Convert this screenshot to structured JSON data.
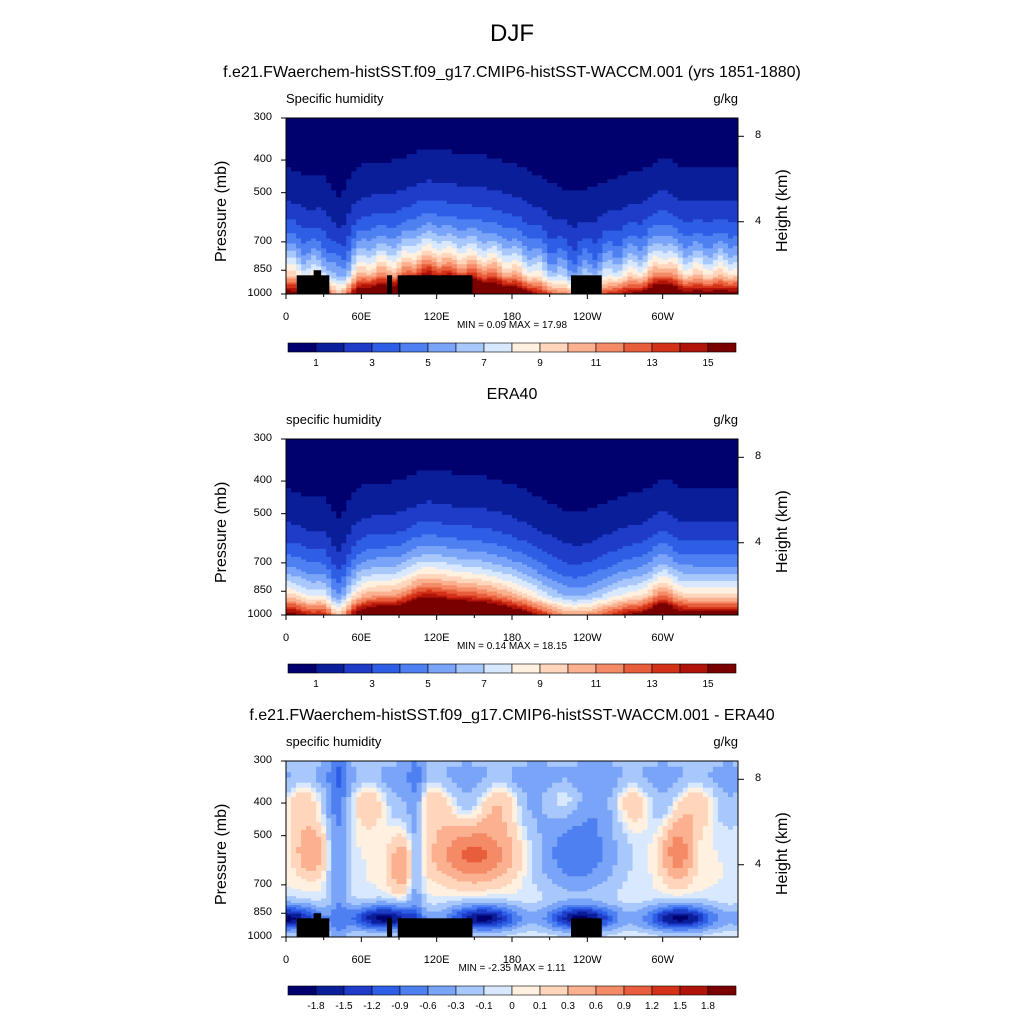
{
  "page_title": "DJF",
  "chart_data": [
    {
      "type": "heatmap",
      "name": "model",
      "title": "f.e21.FWaerchem-histSST.f09_g17.CMIP6-histSST-WACCM.001 (yrs 1851-1880)",
      "left_label": "Specific humidity",
      "units": "g/kg",
      "ylabel": "Pressure (mb)",
      "ylabel_right": "Height (km)",
      "yticks": [
        "300",
        "400",
        "500",
        "700",
        "850",
        "1000"
      ],
      "yticks_right": [
        "8",
        "4"
      ],
      "xticks": [
        "0",
        "60E",
        "120E",
        "180",
        "120W",
        "60W"
      ],
      "minmax": "MIN =   0.09  MAX =   17.98",
      "colorbar_labels": [
        "1",
        "3",
        "5",
        "7",
        "9",
        "11",
        "13",
        "15"
      ],
      "min": 0.09,
      "max": 17.98
    },
    {
      "type": "heatmap",
      "name": "obs",
      "title": "ERA40",
      "left_label": "specific humidity",
      "units": "g/kg",
      "ylabel": "Pressure (mb)",
      "ylabel_right": "Height (km)",
      "yticks": [
        "300",
        "400",
        "500",
        "700",
        "850",
        "1000"
      ],
      "yticks_right": [
        "8",
        "4"
      ],
      "xticks": [
        "0",
        "60E",
        "120E",
        "180",
        "120W",
        "60W"
      ],
      "minmax": "MIN =   0.14  MAX =   18.15",
      "colorbar_labels": [
        "1",
        "3",
        "5",
        "7",
        "9",
        "11",
        "13",
        "15"
      ],
      "min": 0.14,
      "max": 18.15
    },
    {
      "type": "heatmap",
      "name": "diff",
      "title": "f.e21.FWaerchem-histSST.f09_g17.CMIP6-histSST-WACCM.001 - ERA40",
      "left_label": "specific humidity",
      "units": "g/kg",
      "ylabel": "Pressure (mb)",
      "ylabel_right": "Height (km)",
      "yticks": [
        "300",
        "400",
        "500",
        "700",
        "850",
        "1000"
      ],
      "yticks_right": [
        "8",
        "4"
      ],
      "xticks": [
        "0",
        "60E",
        "120E",
        "180",
        "120W",
        "60W"
      ],
      "minmax": "MIN =  -2.35  MAX =   1.11",
      "colorbar_labels": [
        "-1.8",
        "-1.5",
        "-1.2",
        "-0.9",
        "-0.6",
        "-0.3",
        "-0.1",
        "0",
        "0.1",
        "0.3",
        "0.6",
        "0.9",
        "1.2",
        "1.5",
        "1.8"
      ],
      "min": -2.35,
      "max": 1.11
    }
  ],
  "palette": [
    "#00006e",
    "#0a1e9a",
    "#1e3cc8",
    "#2e5ee6",
    "#4f80f2",
    "#7aa4f8",
    "#a8c8fc",
    "#d8e8ff",
    "#fff0e0",
    "#ffd6bc",
    "#fbb090",
    "#f48a66",
    "#e85e3c",
    "#d43218",
    "#b01408",
    "#7a0000"
  ]
}
